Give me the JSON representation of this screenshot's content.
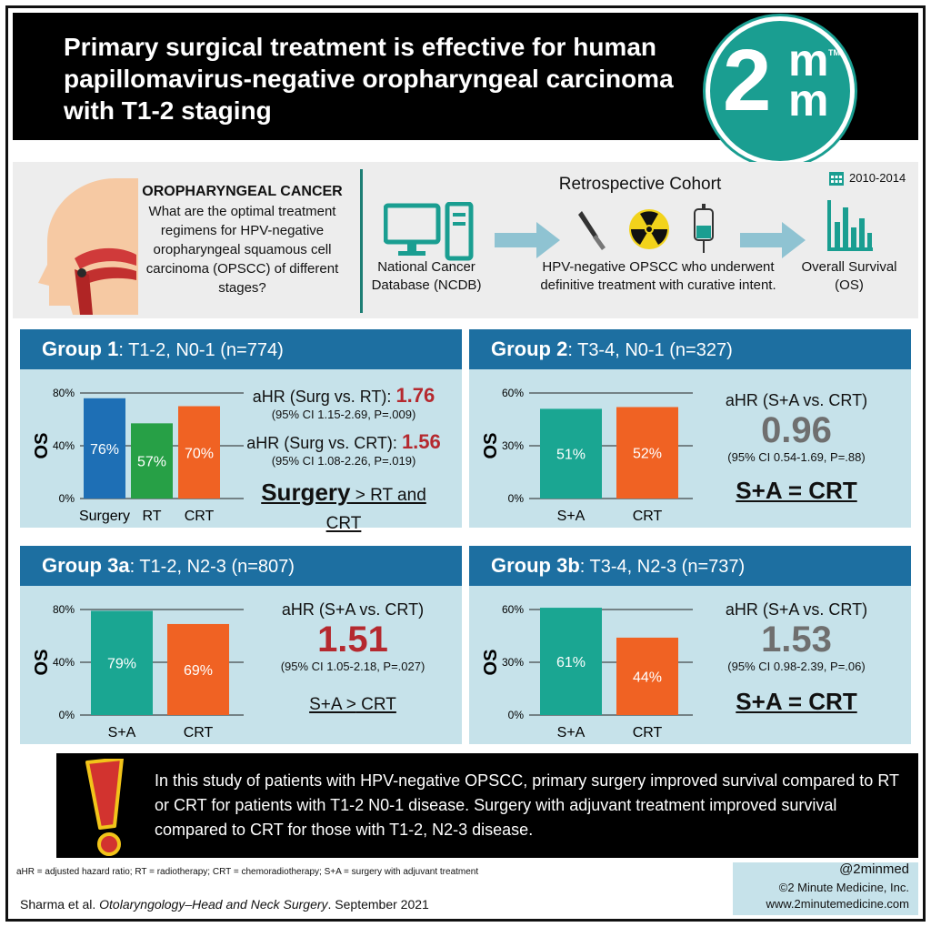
{
  "header": {
    "title": "Primary surgical treatment is effective for human papillomavirus-negative oropharyngeal carcinoma with T1-2 staging"
  },
  "logo": {
    "two": "2",
    "m_top": "m",
    "m_bottom": "m",
    "tm": "TM"
  },
  "question": {
    "title": "OROPHARYNGEAL CANCER",
    "text": "What are the optimal treatment regimens for HPV-negative oropharyngeal squamous cell carcinoma (OPSCC) of different stages?"
  },
  "cohort": {
    "title": "Retrospective Cohort",
    "years": "2010-2014",
    "source": "National Cancer Database (NCDB)",
    "population": "HPV-negative OPSCC who underwent definitive treatment with curative intent.",
    "outcome": "Overall Survival (OS)"
  },
  "chart_data": [
    {
      "type": "bar",
      "title": "Group 1: T1-2, N0-1 (n=774)",
      "ylabel": "OS",
      "ylim": [
        0,
        80
      ],
      "yticks": [
        "0%",
        "40%",
        "80%"
      ],
      "categories": [
        "Surgery",
        "RT",
        "CRT"
      ],
      "values": [
        76,
        57,
        70
      ],
      "labels": [
        "76%",
        "57%",
        "70%"
      ],
      "colors": [
        "#1e6fb5",
        "#27a046",
        "#f06223"
      ]
    },
    {
      "type": "bar",
      "title": "Group 2: T3-4, N0-1 (n=327)",
      "ylabel": "OS",
      "ylim": [
        0,
        60
      ],
      "yticks": [
        "0%",
        "30%",
        "60%"
      ],
      "categories": [
        "S+A",
        "CRT"
      ],
      "values": [
        51,
        52
      ],
      "labels": [
        "51%",
        "52%"
      ],
      "colors": [
        "#1aa692",
        "#f06223"
      ]
    },
    {
      "type": "bar",
      "title": "Group 3a: T1-2, N2-3 (n=807)",
      "ylabel": "OS",
      "ylim": [
        0,
        80
      ],
      "yticks": [
        "0%",
        "40%",
        "80%"
      ],
      "categories": [
        "S+A",
        "CRT"
      ],
      "values": [
        79,
        69
      ],
      "labels": [
        "79%",
        "69%"
      ],
      "colors": [
        "#1aa692",
        "#f06223"
      ]
    },
    {
      "type": "bar",
      "title": "Group 3b: T3-4, N2-3 (n=737)",
      "ylabel": "OS",
      "ylim": [
        0,
        60
      ],
      "yticks": [
        "0%",
        "30%",
        "60%"
      ],
      "categories": [
        "S+A",
        "CRT"
      ],
      "values": [
        61,
        44
      ],
      "labels": [
        "61%",
        "44%"
      ],
      "colors": [
        "#1aa692",
        "#f06223"
      ]
    }
  ],
  "panels": [
    {
      "group": "Group 1",
      "subtitle": ": T1-2, N0-1 (n=774)",
      "stat1_label": "aHR (Surg vs. RT): ",
      "stat1_value": "1.76",
      "stat1_ci": "(95% CI 1.15-2.69, P=.009)",
      "stat2_label": "aHR (Surg vs. CRT): ",
      "stat2_value": "1.56",
      "stat2_ci": "(95% CI 1.08-2.26, P=.019)",
      "concl_big": "Surgery",
      "concl_small": " > RT and CRT"
    },
    {
      "group": "Group 2",
      "subtitle": ": T3-4, N0-1 (n=327)",
      "stat_label": "aHR (S+A vs. CRT)",
      "stat_value": "0.96",
      "stat_ci": "(95% CI 0.54-1.69, P=.88)",
      "concl": "S+A = CRT"
    },
    {
      "group": "Group 3a",
      "subtitle": ": T1-2, N2-3 (n=807)",
      "stat_label": "aHR (S+A vs. CRT)",
      "stat_value": "1.51",
      "stat_ci": "(95% CI 1.05-2.18, P=.027)",
      "concl_big": "S+A >",
      "concl_small": " CRT"
    },
    {
      "group": "Group 3b",
      "subtitle": ": T3-4, N2-3 (n=737)",
      "stat_label": "aHR (S+A vs. CRT)",
      "stat_value": "1.53",
      "stat_ci": "(95% CI 0.98-2.39, P=.06)",
      "concl": "S+A = CRT"
    }
  ],
  "summary": {
    "text": "In this study of patients with HPV-negative OPSCC, primary surgery improved survival compared to RT or CRT for patients with T1-2 N0-1 disease. Surgery with adjuvant treatment improved survival compared to CRT for those with T1-2, N2-3 disease."
  },
  "footer": {
    "abbreviations": "aHR = adjusted hazard ratio; RT = radiotherapy; CRT = chemoradiotherapy; S+A = surgery with adjuvant treatment",
    "handle": "@2minmed",
    "company": "©2 Minute Medicine, Inc.",
    "website": "www.2minutemedicine.com",
    "citation_authors": "Sharma et al. ",
    "citation_journal": "Otolaryngology–Head and Neck Surgery",
    "citation_date": ". September 2021"
  }
}
